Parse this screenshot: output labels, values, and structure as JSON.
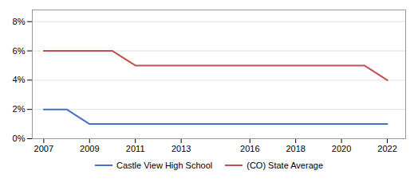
{
  "chart_data": {
    "type": "line",
    "x": [
      2007,
      2008,
      2009,
      2010,
      2011,
      2012,
      2013,
      2014,
      2015,
      2016,
      2017,
      2018,
      2019,
      2020,
      2021,
      2022
    ],
    "series": [
      {
        "name": "Castle View High School",
        "color": "#4472C4",
        "values": [
          2,
          2,
          1,
          1,
          1,
          1,
          1,
          1,
          1,
          1,
          1,
          1,
          1,
          1,
          1,
          1
        ]
      },
      {
        "name": "(CO) State Average",
        "color": "#C0504D",
        "values": [
          6,
          6,
          6,
          6,
          5,
          5,
          5,
          5,
          5,
          5,
          5,
          5,
          5,
          5,
          5,
          4
        ]
      }
    ],
    "xlim": [
      2006.5,
      2022.8
    ],
    "xticks": [
      2007,
      2009,
      2011,
      2013,
      2016,
      2018,
      2020,
      2022
    ],
    "ylim": [
      0,
      8.8
    ],
    "yticks": [
      {
        "value": 0,
        "label": "0%"
      },
      {
        "value": 2,
        "label": "2%"
      },
      {
        "value": 4,
        "label": "4%"
      },
      {
        "value": 6,
        "label": "6%"
      },
      {
        "value": 8,
        "label": "8%"
      }
    ],
    "grid": true,
    "legend": "bottom"
  }
}
